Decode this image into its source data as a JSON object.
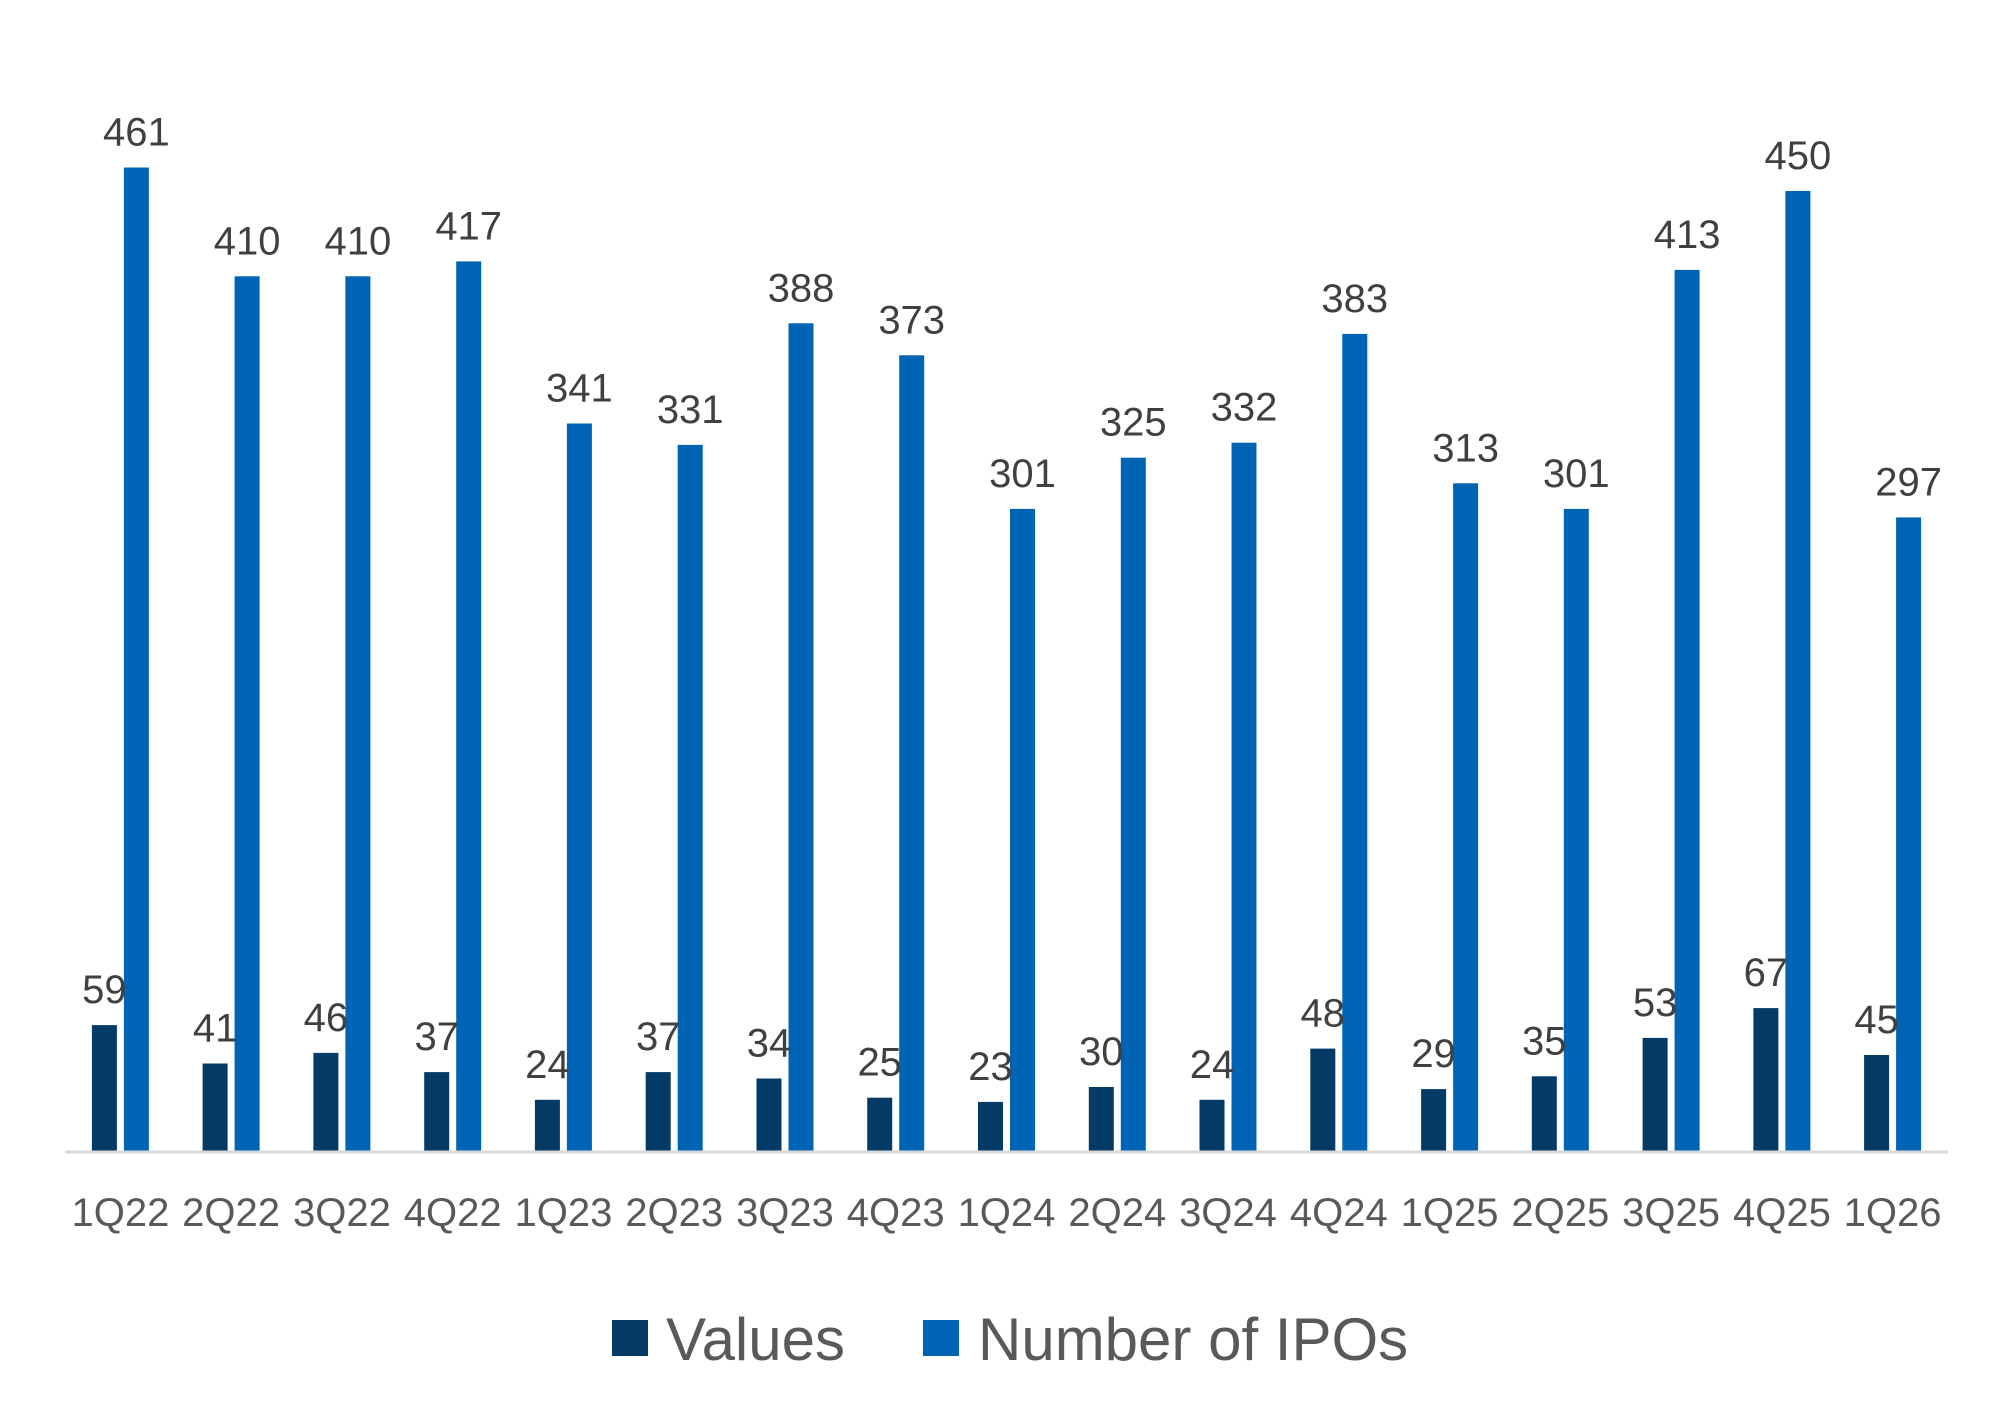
{
  "chart_data": {
    "type": "bar",
    "title": "",
    "xlabel": "",
    "ylabel": "",
    "ylim": [
      0,
      480
    ],
    "grid": false,
    "legend_position": "bottom",
    "categories": [
      "1Q22",
      "2Q22",
      "3Q22",
      "4Q22",
      "1Q23",
      "2Q23",
      "3Q23",
      "4Q23",
      "1Q24",
      "2Q24",
      "3Q24",
      "4Q24",
      "1Q25",
      "2Q25",
      "3Q25",
      "4Q25",
      "1Q26"
    ],
    "series": [
      {
        "name": "Values",
        "color": "#033a66",
        "values": [
          59,
          41,
          46,
          37,
          24,
          37,
          34,
          25,
          23,
          30,
          24,
          48,
          29,
          35,
          53,
          67,
          45
        ]
      },
      {
        "name": "Number of IPOs",
        "color": "#0064b4",
        "values": [
          461,
          410,
          410,
          417,
          341,
          331,
          388,
          373,
          301,
          325,
          332,
          383,
          313,
          301,
          413,
          450,
          297
        ]
      }
    ],
    "axis_color": "#d9d9d9"
  }
}
